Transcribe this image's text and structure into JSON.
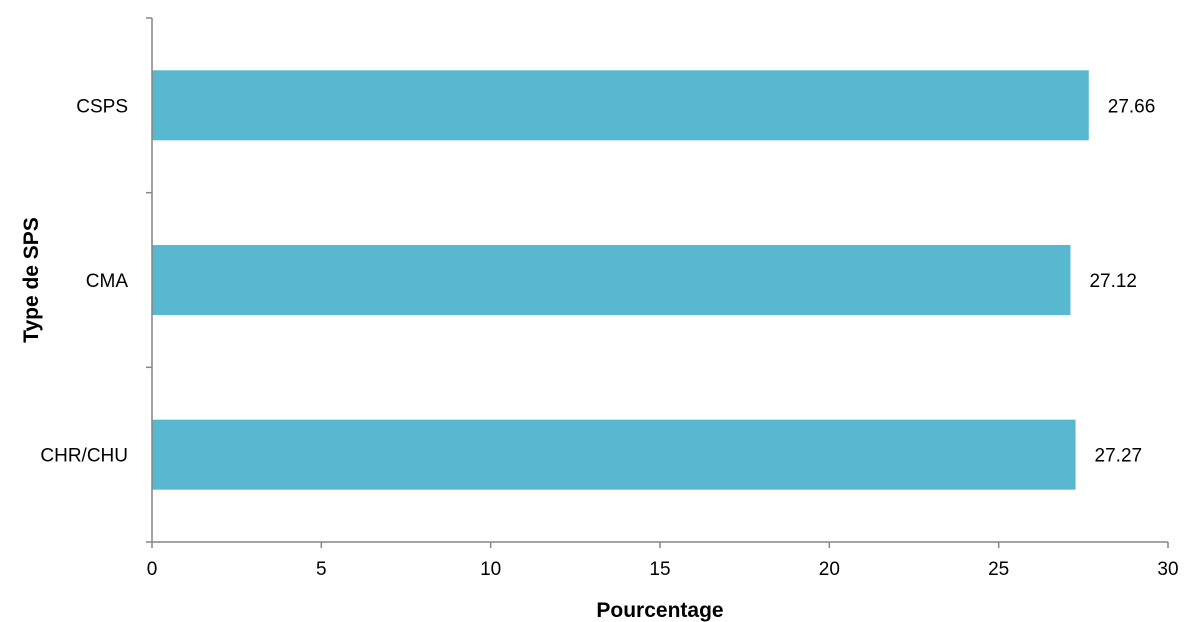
{
  "chart_data": {
    "type": "bar",
    "orientation": "horizontal",
    "categories": [
      "CSPS",
      "CMA",
      "CHR/CHU"
    ],
    "values": [
      27.66,
      27.12,
      27.27
    ],
    "data_labels": [
      "27.66",
      "27.12",
      "27.27"
    ],
    "xlabel": "Pourcentage",
    "ylabel": "Type de SPS",
    "xlim": [
      0,
      30
    ],
    "x_ticks": [
      0,
      5,
      10,
      15,
      20,
      25,
      30
    ],
    "grid": false,
    "legend": "none",
    "colors": {
      "bar": "#57b8cf",
      "axis": "#868686"
    }
  }
}
